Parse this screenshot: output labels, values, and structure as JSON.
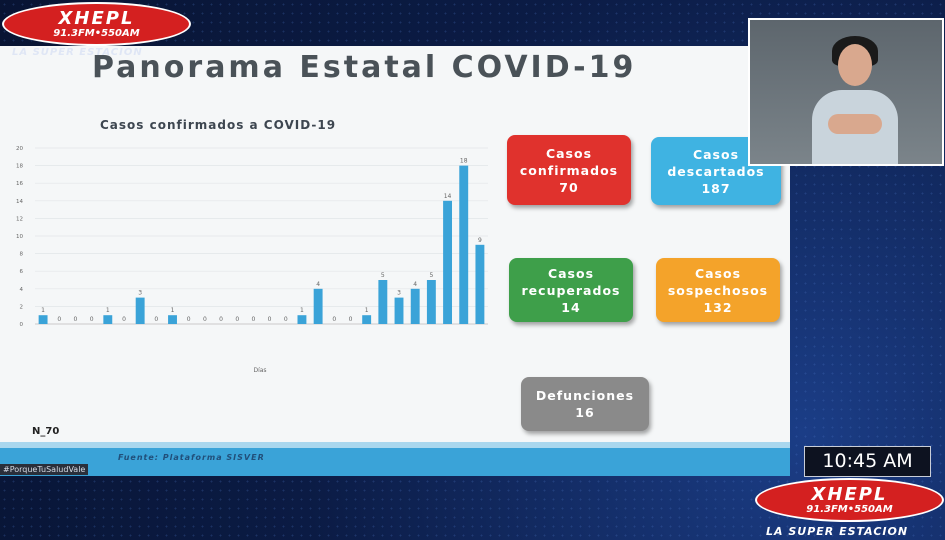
{
  "slide": {
    "title": "Panorama Estatal COVID-19",
    "n_label": "N_70",
    "source": "Fuente: Plataforma SISVER",
    "hashtag": "#PorqueTuSaludVale"
  },
  "chart_data": {
    "type": "bar",
    "title": "Casos confirmados a COVID-19",
    "xlabel": "Días",
    "ylabel": "",
    "ylim": [
      0,
      20
    ],
    "yticks": [
      0,
      2,
      4,
      6,
      8,
      10,
      12,
      14,
      16,
      18,
      20
    ],
    "values": [
      1,
      0,
      0,
      0,
      1,
      0,
      3,
      0,
      1,
      0,
      0,
      0,
      0,
      0,
      0,
      0,
      1,
      4,
      0,
      0,
      1,
      5,
      3,
      4,
      5,
      14,
      18,
      9
    ],
    "color": "#3aa3d8",
    "grid": true
  },
  "stats": {
    "confirmados": {
      "label_1": "Casos",
      "label_2": "confirmados",
      "value": "70",
      "color": "#e0322d"
    },
    "descartados": {
      "label_1": "Casos",
      "label_2": "descartados",
      "value": "187",
      "color": "#3fb3e2"
    },
    "recuperados": {
      "label_1": "Casos",
      "label_2": "recuperados",
      "value": "14",
      "color": "#3e9f4a"
    },
    "sospechosos": {
      "label_1": "Casos",
      "label_2": "sospechosos",
      "value": "132",
      "color": "#f4a32a"
    },
    "defunciones": {
      "label_1": "Defunciones",
      "value": "16",
      "color": "#8a8a8a"
    }
  },
  "broadcast": {
    "logo_main": "XHEPL",
    "logo_freq": "91.3FM•550AM",
    "tagline": "LA SUPER ESTACION",
    "time": "10:45 AM"
  }
}
